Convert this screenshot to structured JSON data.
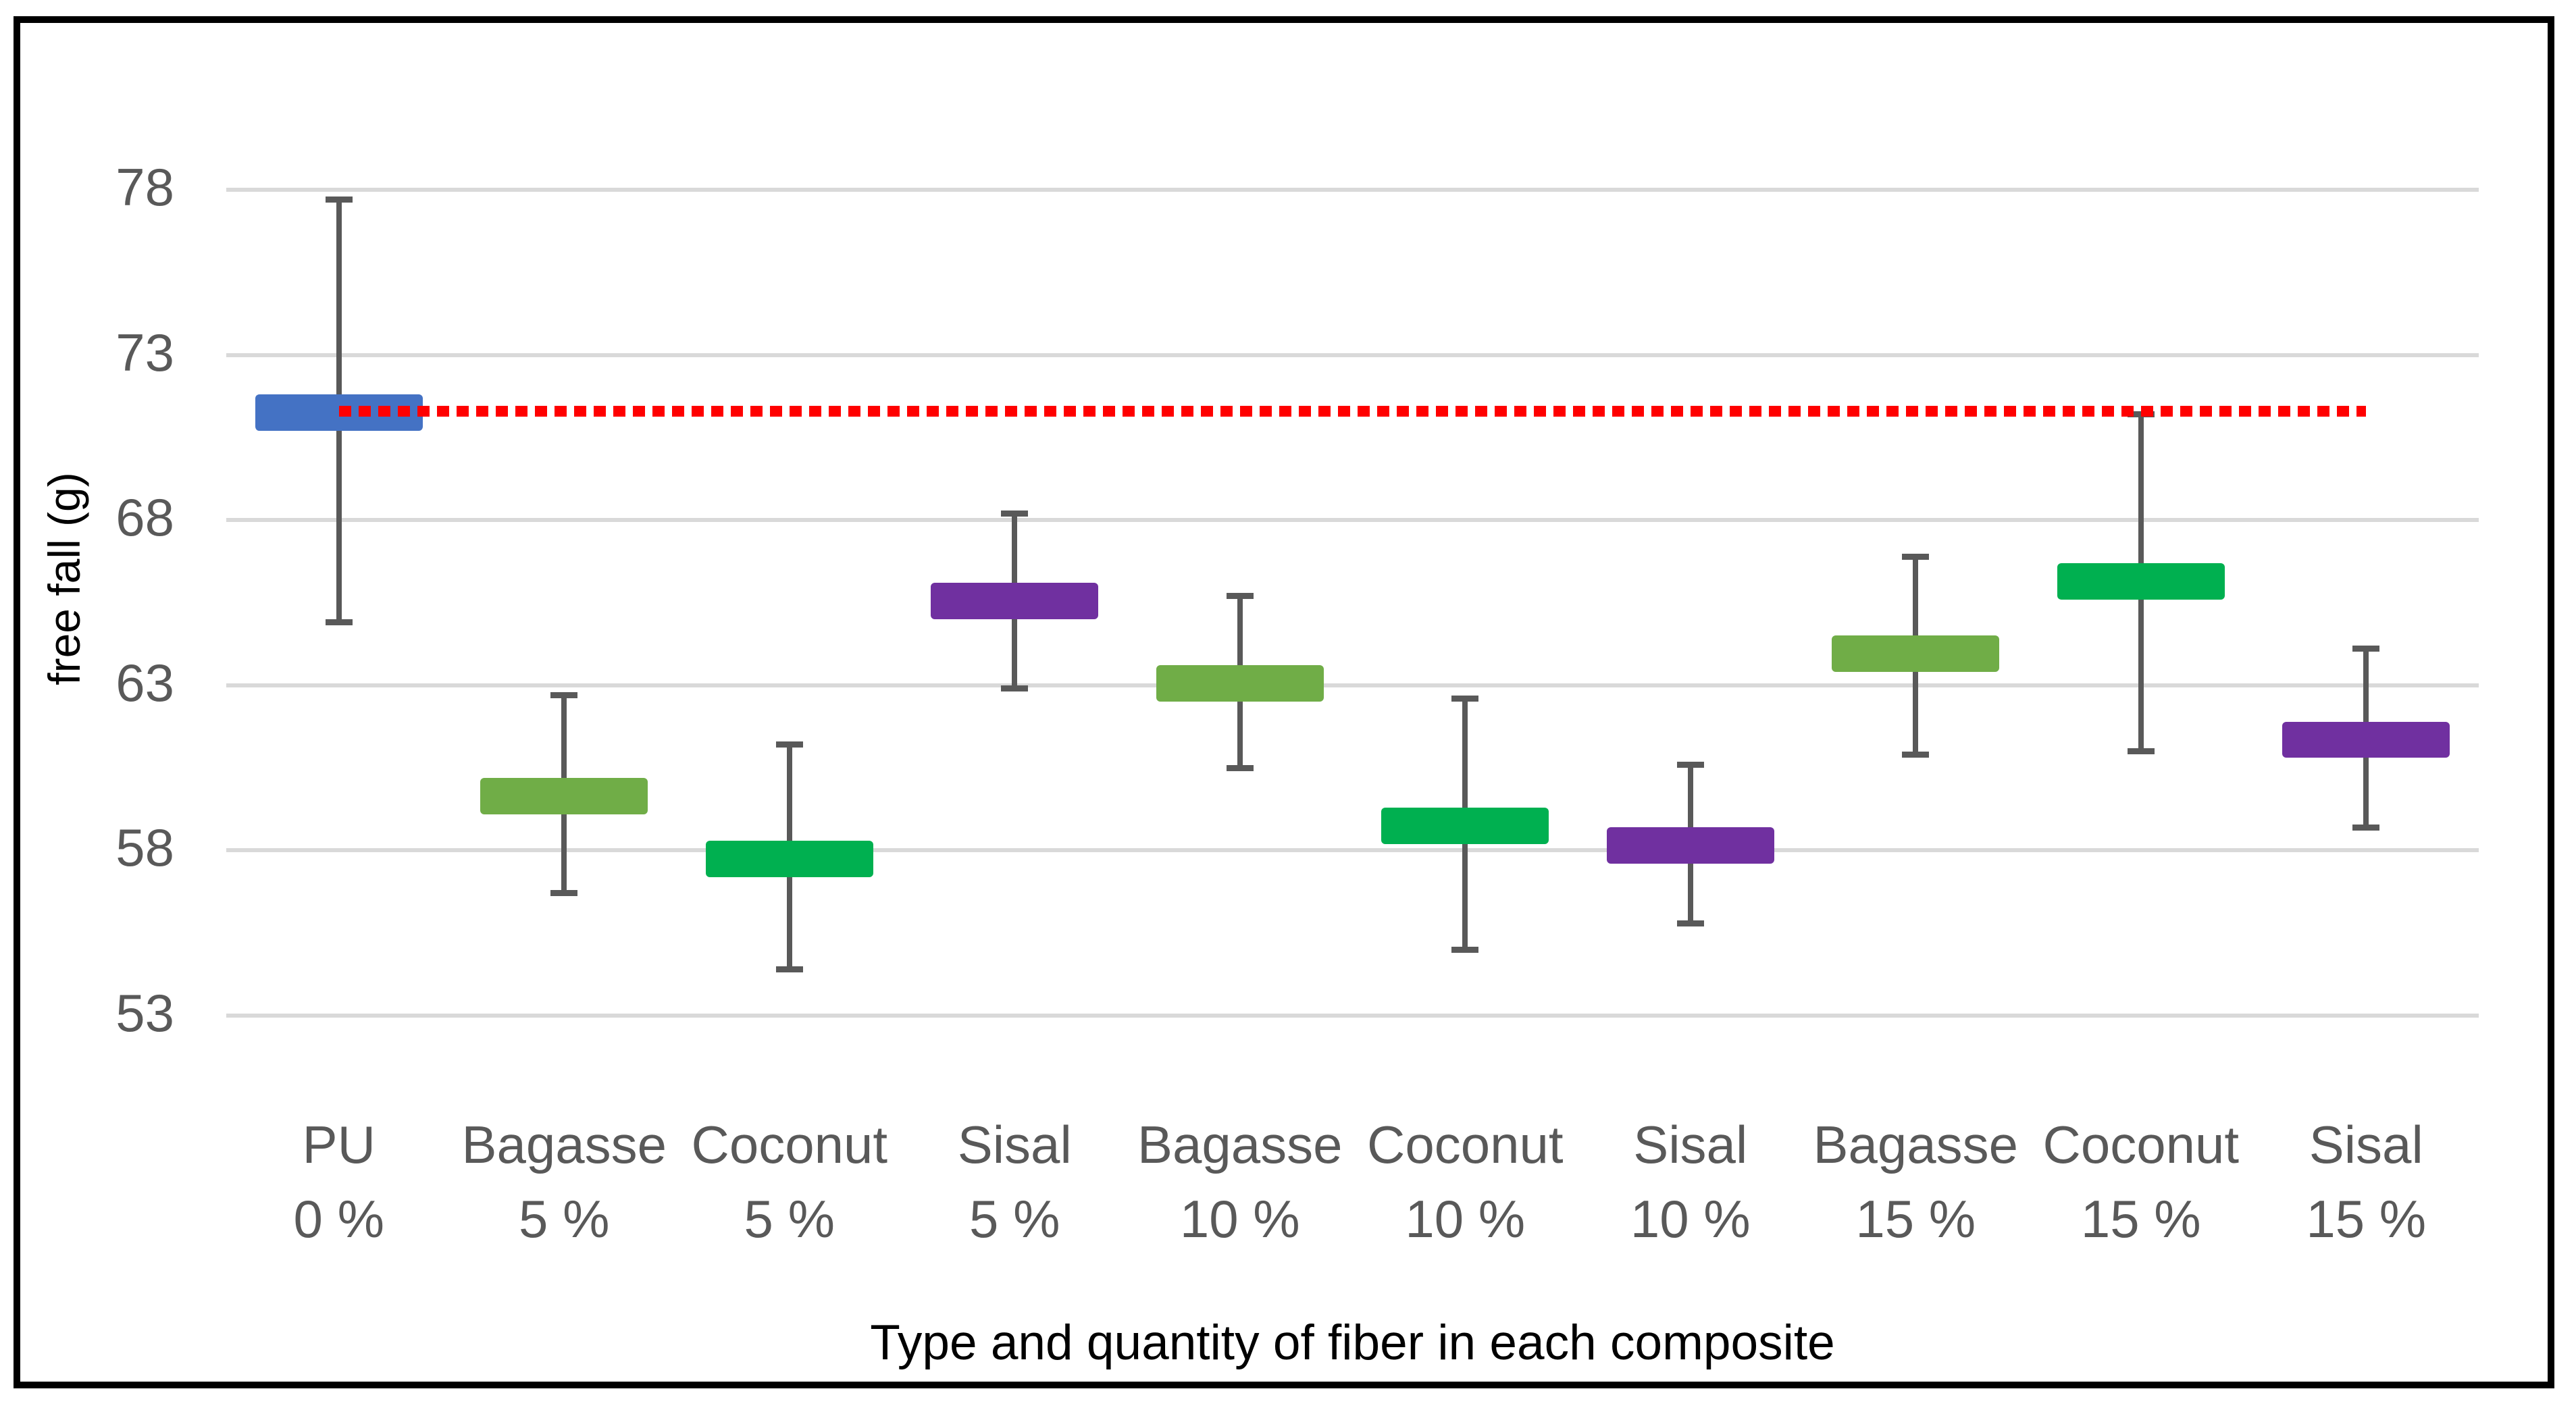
{
  "chart_data": {
    "type": "boxplot",
    "title": "",
    "xlabel": "Type and quantity of fiber in each composite",
    "ylabel": "free fall (g)",
    "y_ticks": [
      78,
      73,
      68,
      63,
      58,
      53
    ],
    "ylim": [
      50.5,
      80.7
    ],
    "grid": "horizontal-only",
    "legend": "none",
    "categories": [
      {
        "fiber": "PU",
        "quantity": "0 %",
        "color": "#4472C4",
        "whisker_high": 77.7,
        "box_high": 71.8,
        "box_low": 70.7,
        "whisker_low": 64.9
      },
      {
        "fiber": "Bagasse",
        "quantity": "5 %",
        "color": "#70AD47",
        "whisker_high": 62.7,
        "box_high": 60.2,
        "box_low": 59.1,
        "whisker_low": 56.7
      },
      {
        "fiber": "Coconut",
        "quantity": "5 %",
        "color": "#00B050",
        "whisker_high": 61.2,
        "box_high": 58.3,
        "box_low": 57.2,
        "whisker_low": 54.4
      },
      {
        "fiber": "Sisal",
        "quantity": "5 %",
        "color": "#7030A0",
        "whisker_high": 68.2,
        "box_high": 66.1,
        "box_low": 65.0,
        "whisker_low": 62.9
      },
      {
        "fiber": "Bagasse",
        "quantity": "10 %",
        "color": "#70AD47",
        "whisker_high": 65.7,
        "box_high": 63.6,
        "box_low": 62.5,
        "whisker_low": 60.5
      },
      {
        "fiber": "Coconut",
        "quantity": "10 %",
        "color": "#00B050",
        "whisker_high": 62.6,
        "box_high": 59.3,
        "box_low": 58.2,
        "whisker_low": 55.0
      },
      {
        "fiber": "Sisal",
        "quantity": "10 %",
        "color": "#7030A0",
        "whisker_high": 60.6,
        "box_high": 58.7,
        "box_low": 57.6,
        "whisker_low": 55.8
      },
      {
        "fiber": "Bagasse",
        "quantity": "15 %",
        "color": "#70AD47",
        "whisker_high": 66.9,
        "box_high": 64.5,
        "box_low": 63.4,
        "whisker_low": 60.9
      },
      {
        "fiber": "Coconut",
        "quantity": "15 %",
        "color": "#00B050",
        "whisker_high": 71.2,
        "box_high": 66.7,
        "box_low": 65.6,
        "whisker_low": 61.0
      },
      {
        "fiber": "Sisal",
        "quantity": "15 %",
        "color": "#7030A0",
        "whisker_high": 64.1,
        "box_high": 61.9,
        "box_low": 60.8,
        "whisker_low": 58.7
      }
    ],
    "reference_line": {
      "value": 71.3,
      "color": "#FF0000",
      "style": "dashed"
    }
  },
  "style_colors": {
    "whisker": "#595959",
    "gridline": "#D9D9D9",
    "axis_text": "#595959",
    "figure_border": "#000000",
    "background": "#FFFFFF"
  }
}
